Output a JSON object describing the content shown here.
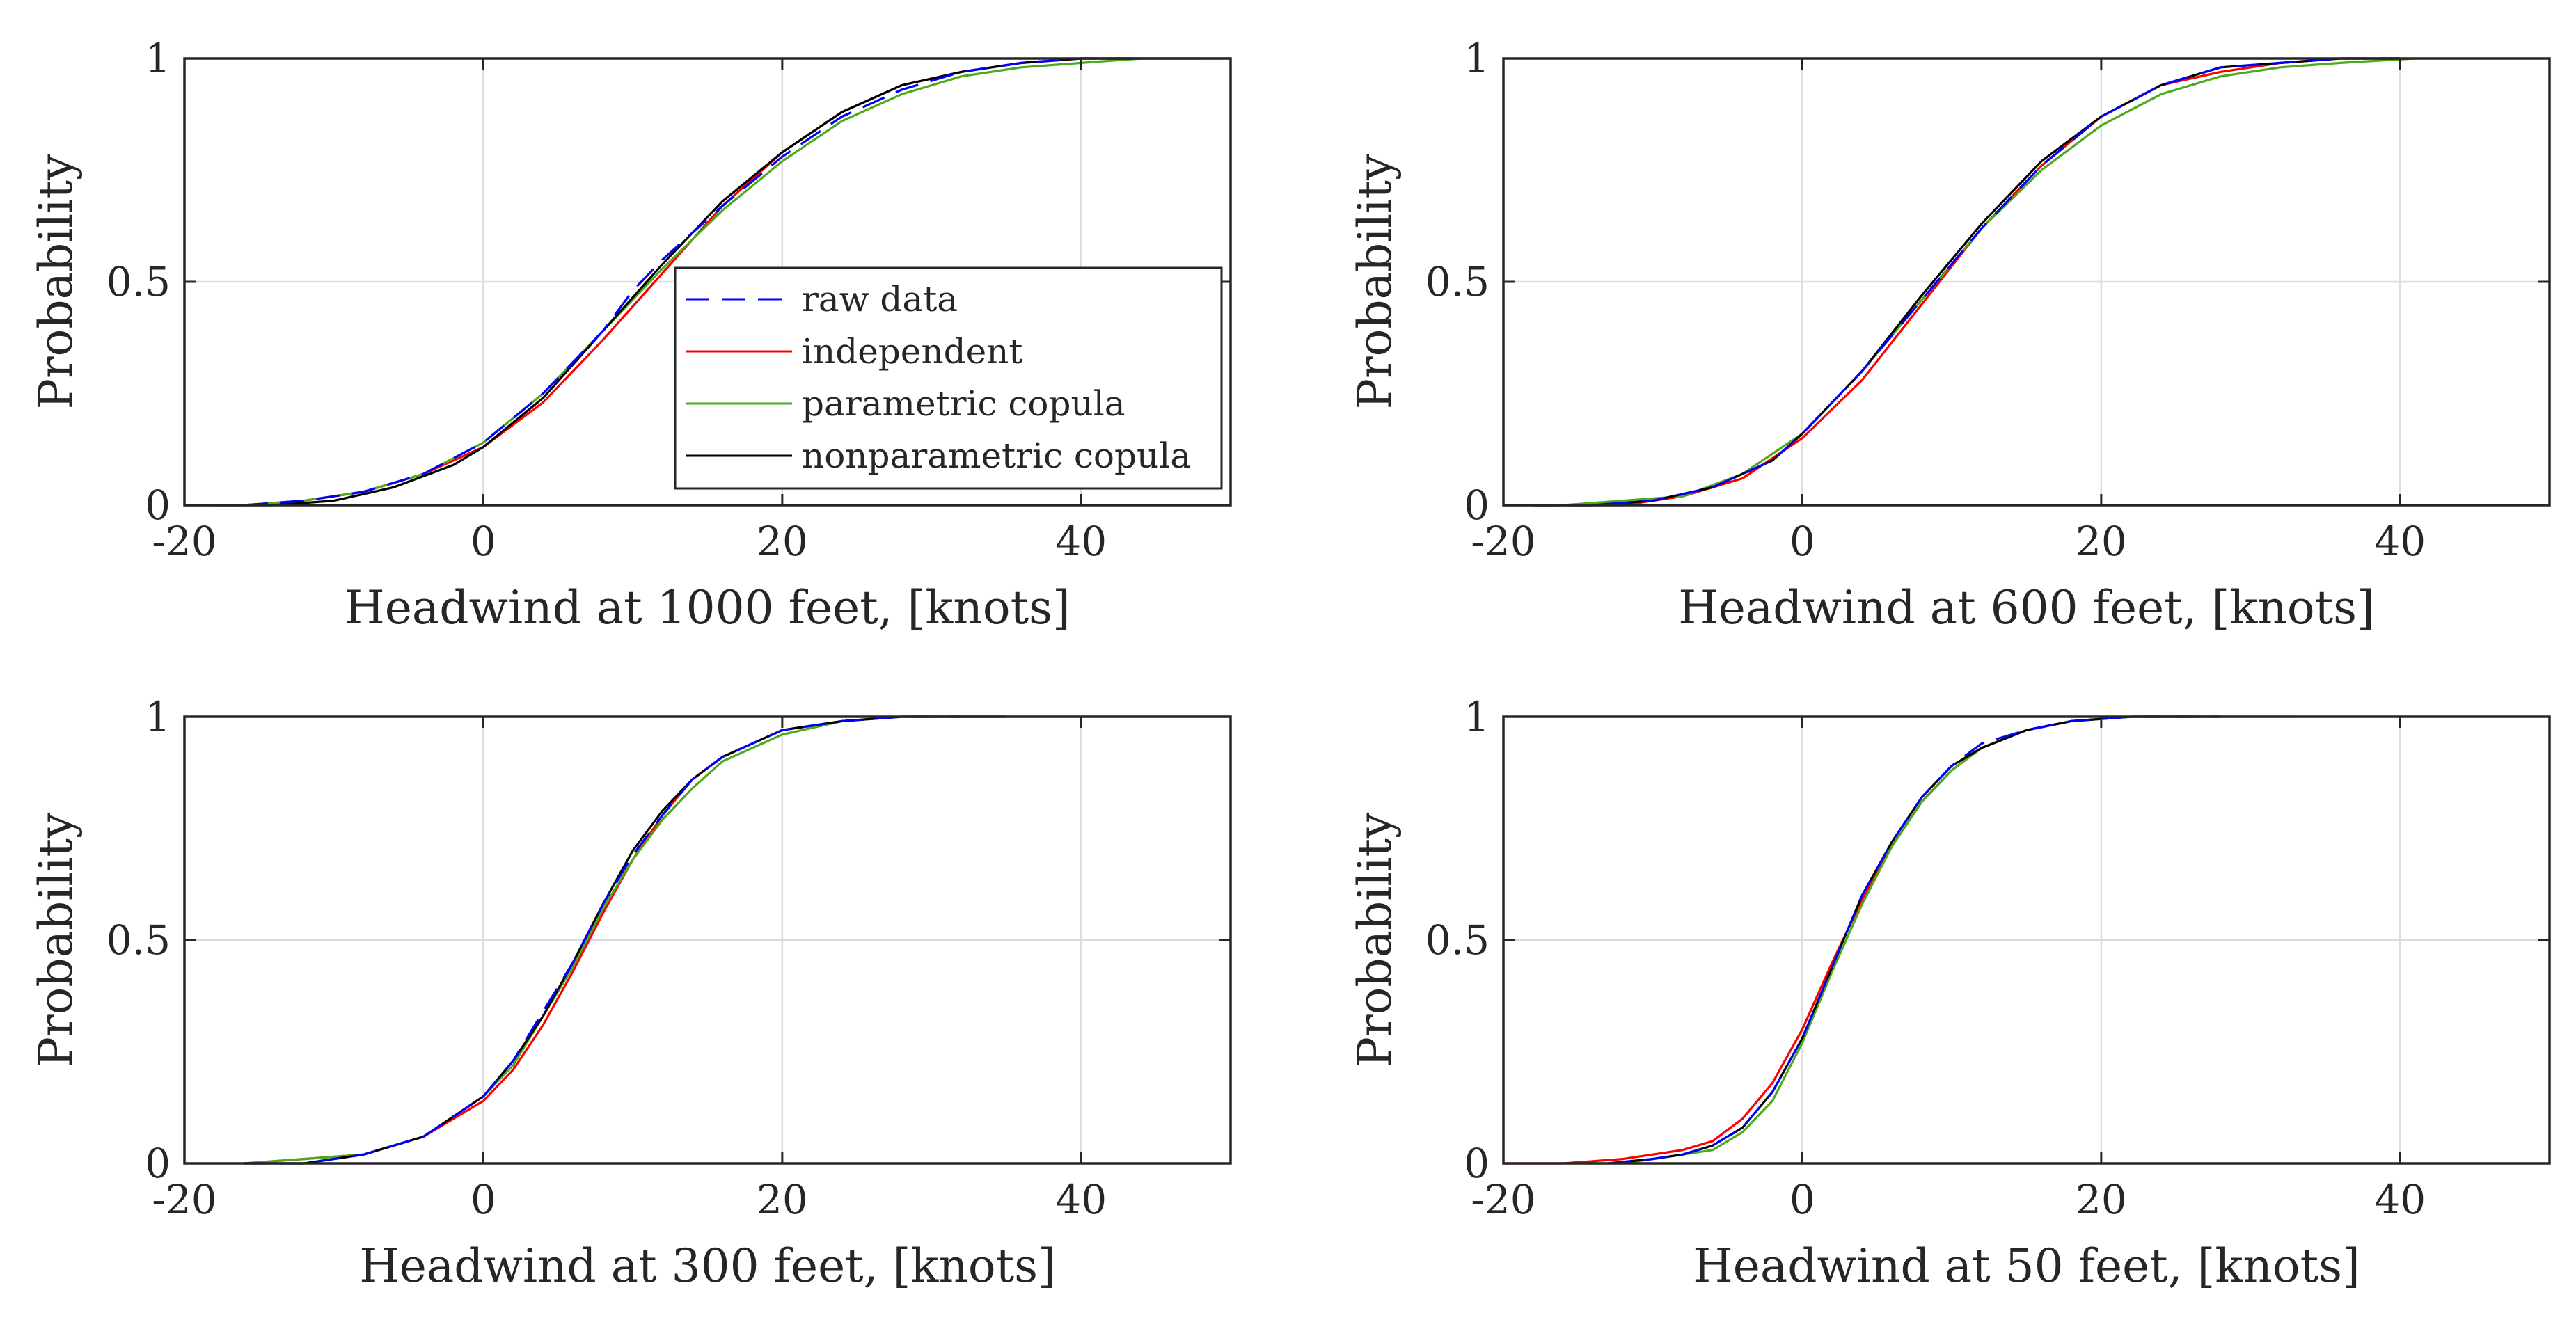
{
  "chart_data": [
    {
      "type": "line",
      "title": "",
      "xlabel": "Headwind at 1000 feet, [knots]",
      "ylabel": "Probability",
      "xlim": [
        -20,
        50
      ],
      "ylim": [
        0,
        1
      ],
      "xticks": [
        -20,
        0,
        20,
        40
      ],
      "xtick_labels": [
        "-20",
        "0",
        "20",
        "40"
      ],
      "yticks": [
        0,
        0.5,
        1
      ],
      "ytick_labels": [
        "0",
        "0.5",
        "1"
      ],
      "grid": true,
      "legend": {
        "location": "center-right",
        "entries": [
          "raw data",
          "independent",
          "parametric copula",
          "nonparametric copula"
        ]
      },
      "series": [
        {
          "name": "raw data",
          "color": "#0000ff",
          "style": "dashed",
          "x": [
            -16,
            -12,
            -8,
            -4,
            0,
            4,
            8,
            10,
            12,
            16,
            20,
            24,
            28,
            32,
            36,
            40,
            44
          ],
          "y": [
            0.0,
            0.01,
            0.03,
            0.07,
            0.14,
            0.25,
            0.39,
            0.48,
            0.55,
            0.67,
            0.78,
            0.87,
            0.93,
            0.97,
            0.99,
            1.0,
            1.0
          ]
        },
        {
          "name": "independent",
          "color": "#ff0000",
          "style": "solid",
          "x": [
            -20,
            -16,
            -12,
            -8,
            -4,
            0,
            4,
            8,
            12,
            16,
            20,
            24,
            28,
            32,
            36,
            40,
            44,
            48
          ],
          "y": [
            0.0,
            0.0,
            0.01,
            0.03,
            0.07,
            0.13,
            0.23,
            0.37,
            0.52,
            0.67,
            0.79,
            0.88,
            0.94,
            0.97,
            0.99,
            1.0,
            1.0,
            1.0
          ]
        },
        {
          "name": "parametric copula",
          "color": "#4daa1c",
          "style": "solid",
          "x": [
            -20,
            -16,
            -12,
            -8,
            -4,
            0,
            4,
            8,
            12,
            16,
            20,
            24,
            28,
            32,
            36,
            40,
            44,
            50
          ],
          "y": [
            0.0,
            0.0,
            0.01,
            0.03,
            0.07,
            0.14,
            0.25,
            0.39,
            0.53,
            0.66,
            0.77,
            0.86,
            0.92,
            0.96,
            0.98,
            0.99,
            1.0,
            1.0
          ]
        },
        {
          "name": "nonparametric copula",
          "color": "#000000",
          "style": "solid",
          "x": [
            -18,
            -14,
            -10,
            -6,
            -2,
            0,
            4,
            8,
            12,
            16,
            20,
            24,
            28,
            32,
            36,
            40,
            44
          ],
          "y": [
            0.0,
            0.0,
            0.01,
            0.04,
            0.09,
            0.13,
            0.24,
            0.39,
            0.54,
            0.68,
            0.79,
            0.88,
            0.94,
            0.97,
            0.99,
            1.0,
            1.0
          ]
        }
      ]
    },
    {
      "type": "line",
      "title": "",
      "xlabel": "Headwind at 600 feet, [knots]",
      "ylabel": "Probability",
      "xlim": [
        -20,
        50
      ],
      "ylim": [
        0,
        1
      ],
      "xticks": [
        -20,
        0,
        20,
        40
      ],
      "xtick_labels": [
        "-20",
        "0",
        "20",
        "40"
      ],
      "yticks": [
        0,
        0.5,
        1
      ],
      "ytick_labels": [
        "0",
        "0.5",
        "1"
      ],
      "grid": true,
      "series": [
        {
          "name": "raw data",
          "color": "#0000ff",
          "style": "dashed",
          "x": [
            -18,
            -14,
            -10,
            -6,
            -2,
            0,
            4,
            8,
            12,
            16,
            20,
            24,
            28,
            32,
            36,
            40
          ],
          "y": [
            0.0,
            0.0,
            0.01,
            0.04,
            0.1,
            0.16,
            0.3,
            0.46,
            0.62,
            0.76,
            0.87,
            0.94,
            0.98,
            0.99,
            1.0,
            1.0
          ]
        },
        {
          "name": "independent",
          "color": "#ff0000",
          "style": "solid",
          "x": [
            -20,
            -16,
            -12,
            -8,
            -4,
            0,
            4,
            8,
            12,
            16,
            20,
            24,
            28,
            32,
            36,
            40
          ],
          "y": [
            0.0,
            0.0,
            0.0,
            0.02,
            0.06,
            0.15,
            0.28,
            0.45,
            0.62,
            0.76,
            0.87,
            0.94,
            0.97,
            0.99,
            1.0,
            1.0
          ]
        },
        {
          "name": "parametric copula",
          "color": "#4daa1c",
          "style": "solid",
          "x": [
            -20,
            -16,
            -12,
            -8,
            -4,
            0,
            4,
            8,
            12,
            16,
            20,
            24,
            28,
            32,
            36,
            41
          ],
          "y": [
            0.0,
            0.0,
            0.01,
            0.02,
            0.07,
            0.16,
            0.3,
            0.46,
            0.62,
            0.75,
            0.85,
            0.92,
            0.96,
            0.98,
            0.99,
            1.0
          ]
        },
        {
          "name": "nonparametric copula",
          "color": "#000000",
          "style": "solid",
          "x": [
            -18,
            -14,
            -10,
            -6,
            -2,
            0,
            4,
            8,
            12,
            16,
            20,
            24,
            28,
            32,
            36,
            40
          ],
          "y": [
            0.0,
            0.0,
            0.01,
            0.04,
            0.1,
            0.16,
            0.3,
            0.47,
            0.63,
            0.77,
            0.87,
            0.94,
            0.98,
            0.99,
            1.0,
            1.0
          ]
        }
      ]
    },
    {
      "type": "line",
      "title": "",
      "xlabel": "Headwind at 300 feet, [knots]",
      "ylabel": "Probability",
      "xlim": [
        -20,
        50
      ],
      "ylim": [
        0,
        1
      ],
      "xticks": [
        -20,
        0,
        20,
        40
      ],
      "xtick_labels": [
        "-20",
        "0",
        "20",
        "40"
      ],
      "yticks": [
        0,
        0.5,
        1
      ],
      "ytick_labels": [
        "0",
        "0.5",
        "1"
      ],
      "grid": true,
      "series": [
        {
          "name": "raw data",
          "color": "#0000ff",
          "style": "dashed",
          "x": [
            -16,
            -12,
            -8,
            -4,
            0,
            2,
            4,
            6,
            8,
            10,
            12,
            14,
            16,
            20,
            24,
            28,
            32
          ],
          "y": [
            0.0,
            0.0,
            0.02,
            0.06,
            0.15,
            0.23,
            0.34,
            0.45,
            0.58,
            0.69,
            0.78,
            0.86,
            0.91,
            0.97,
            0.99,
            1.0,
            1.0
          ]
        },
        {
          "name": "independent",
          "color": "#ff0000",
          "style": "solid",
          "x": [
            -16,
            -12,
            -8,
            -4,
            0,
            2,
            4,
            6,
            8,
            10,
            12,
            14,
            16,
            20,
            24,
            28,
            32,
            35
          ],
          "y": [
            0.0,
            0.01,
            0.02,
            0.06,
            0.14,
            0.21,
            0.31,
            0.43,
            0.56,
            0.68,
            0.78,
            0.86,
            0.91,
            0.97,
            0.99,
            1.0,
            1.0,
            1.0
          ]
        },
        {
          "name": "parametric copula",
          "color": "#4daa1c",
          "style": "solid",
          "x": [
            -16,
            -12,
            -8,
            -4,
            0,
            2,
            4,
            6,
            8,
            10,
            12,
            14,
            16,
            20,
            24,
            28,
            32,
            36,
            40,
            44,
            50
          ],
          "y": [
            0.0,
            0.01,
            0.02,
            0.06,
            0.15,
            0.22,
            0.33,
            0.44,
            0.57,
            0.68,
            0.77,
            0.84,
            0.9,
            0.96,
            0.99,
            1.0,
            1.0,
            1.0,
            1.0,
            1.0,
            1.0
          ]
        },
        {
          "name": "nonparametric copula",
          "color": "#000000",
          "style": "solid",
          "x": [
            -16,
            -12,
            -8,
            -4,
            0,
            2,
            4,
            6,
            8,
            10,
            12,
            14,
            16,
            20,
            24,
            28,
            32,
            35
          ],
          "y": [
            0.0,
            0.0,
            0.02,
            0.06,
            0.15,
            0.23,
            0.33,
            0.45,
            0.58,
            0.7,
            0.79,
            0.86,
            0.91,
            0.97,
            0.99,
            1.0,
            1.0,
            1.0
          ]
        }
      ]
    },
    {
      "type": "line",
      "title": "",
      "xlabel": "Headwind at 50 feet, [knots]",
      "ylabel": "Probability",
      "xlim": [
        -20,
        50
      ],
      "ylim": [
        0,
        1
      ],
      "xticks": [
        -20,
        0,
        20,
        40
      ],
      "xtick_labels": [
        "-20",
        "0",
        "20",
        "40"
      ],
      "yticks": [
        0,
        0.5,
        1
      ],
      "ytick_labels": [
        "0",
        "0.5",
        "1"
      ],
      "grid": true,
      "series": [
        {
          "name": "raw data",
          "color": "#0000ff",
          "style": "dashed",
          "x": [
            -13,
            -10,
            -8,
            -6,
            -4,
            -2,
            0,
            1,
            2,
            3,
            4,
            6,
            8,
            10,
            12,
            15,
            18,
            22,
            28
          ],
          "y": [
            0.0,
            0.01,
            0.02,
            0.04,
            0.08,
            0.16,
            0.28,
            0.36,
            0.44,
            0.52,
            0.6,
            0.72,
            0.82,
            0.89,
            0.94,
            0.97,
            0.99,
            1.0,
            1.0
          ]
        },
        {
          "name": "independent",
          "color": "#ff0000",
          "style": "solid",
          "x": [
            -20,
            -16,
            -12,
            -10,
            -8,
            -6,
            -4,
            -2,
            0,
            2,
            4,
            6,
            8,
            10,
            12,
            15,
            18,
            22,
            26
          ],
          "y": [
            0.0,
            0.0,
            0.01,
            0.02,
            0.03,
            0.05,
            0.1,
            0.18,
            0.3,
            0.45,
            0.59,
            0.71,
            0.81,
            0.88,
            0.93,
            0.97,
            0.99,
            1.0,
            1.0
          ]
        },
        {
          "name": "parametric copula",
          "color": "#4daa1c",
          "style": "solid",
          "x": [
            -15,
            -12,
            -10,
            -8,
            -6,
            -4,
            -2,
            0,
            2,
            4,
            6,
            8,
            10,
            12,
            15,
            18,
            22,
            28,
            33
          ],
          "y": [
            0.0,
            0.0,
            0.01,
            0.02,
            0.03,
            0.07,
            0.14,
            0.27,
            0.43,
            0.58,
            0.71,
            0.81,
            0.88,
            0.93,
            0.97,
            0.99,
            1.0,
            1.0,
            1.0
          ]
        },
        {
          "name": "nonparametric copula",
          "color": "#000000",
          "style": "solid",
          "x": [
            -13,
            -10,
            -8,
            -6,
            -4,
            -2,
            0,
            2,
            4,
            6,
            8,
            10,
            12,
            15,
            18,
            22,
            28
          ],
          "y": [
            0.0,
            0.01,
            0.02,
            0.04,
            0.08,
            0.16,
            0.28,
            0.44,
            0.6,
            0.72,
            0.82,
            0.89,
            0.93,
            0.97,
            0.99,
            1.0,
            1.0
          ]
        }
      ]
    }
  ]
}
